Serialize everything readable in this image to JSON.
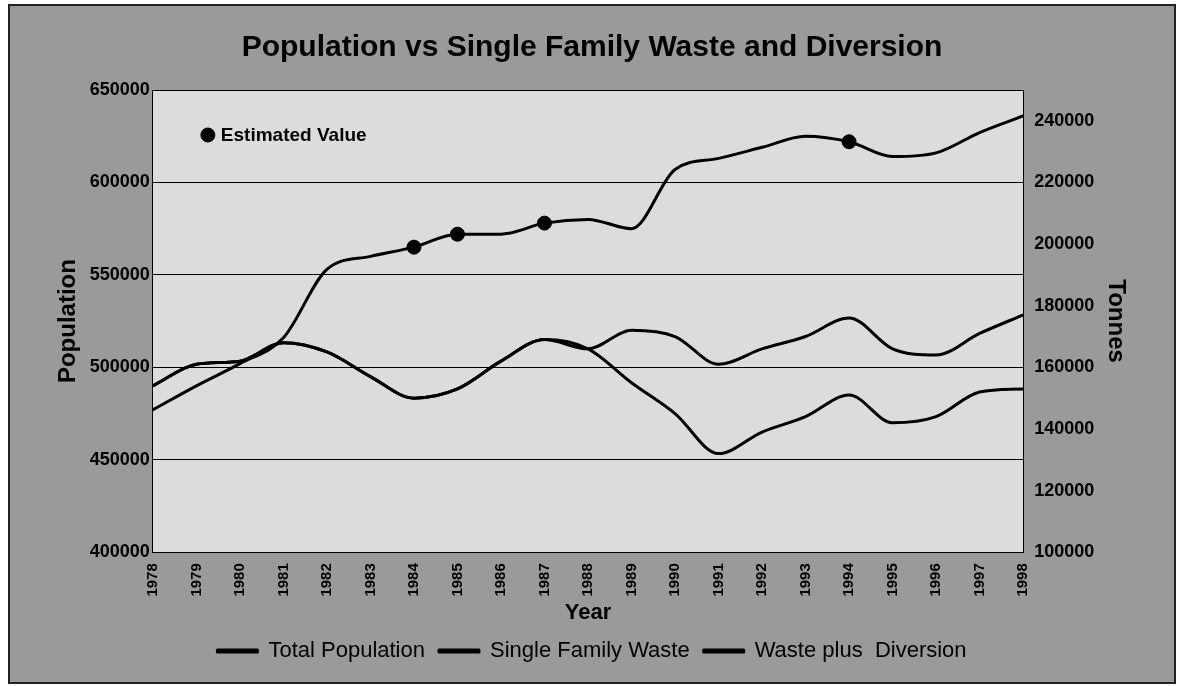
{
  "chart_data": {
    "type": "line",
    "title": "Population vs Single Family Waste and Diversion",
    "xlabel": "Year",
    "ylabel": "Population",
    "y2label": "Tonnes",
    "categories": [
      "1978",
      "1979",
      "1980",
      "1981",
      "1982",
      "1983",
      "1984",
      "1985",
      "1986",
      "1987",
      "1988",
      "1989",
      "1990",
      "1991",
      "1992",
      "1993",
      "1994",
      "1995",
      "1996",
      "1997",
      "1998"
    ],
    "series": [
      {
        "name": "Total Population",
        "color": "#000000",
        "values": [
          477000,
          490000,
          502000,
          516000,
          553000,
          560000,
          565000,
          572000,
          572000,
          578000,
          580000,
          575000,
          607000,
          613000,
          619000,
          625000,
          622000,
          614000,
          616000,
          627000,
          636000
        ]
      },
      {
        "name": "Single Family Waste",
        "color": "#000000",
        "axis": "y2",
        "values": [
          154000,
          161000,
          162000,
          168000,
          165000,
          157000,
          150000,
          153000,
          162000,
          169000,
          166000,
          155000,
          145000,
          132000,
          139000,
          144000,
          151000,
          142000,
          144000,
          152000,
          153000
        ]
      },
      {
        "name": "Waste plus  Diversion",
        "color": "#000000",
        "axis": "y2",
        "values": [
          154000,
          161000,
          162000,
          168000,
          165000,
          157000,
          150000,
          153000,
          162000,
          169000,
          166000,
          172000,
          170000,
          161000,
          166000,
          170000,
          176000,
          166000,
          164000,
          171000,
          177000
        ]
      },
      {
        "name": "Estimated Value",
        "type": "scatter",
        "color": "#000000",
        "marker": "circle",
        "values": [
          null,
          null,
          null,
          null,
          null,
          null,
          565000,
          572000,
          null,
          578000,
          null,
          null,
          null,
          null,
          null,
          null,
          622000,
          null,
          null,
          null,
          null
        ]
      }
    ],
    "ylim": [
      400000,
      650000
    ],
    "yticks": [
      400000,
      450000,
      500000,
      550000,
      600000,
      650000
    ],
    "y2lim": [
      100000,
      250000
    ],
    "y2ticks": [
      100000,
      120000,
      140000,
      160000,
      180000,
      200000,
      220000,
      240000
    ],
    "grid": "y",
    "legend": "bottom",
    "marker": "none",
    "line_style": "solid"
  }
}
